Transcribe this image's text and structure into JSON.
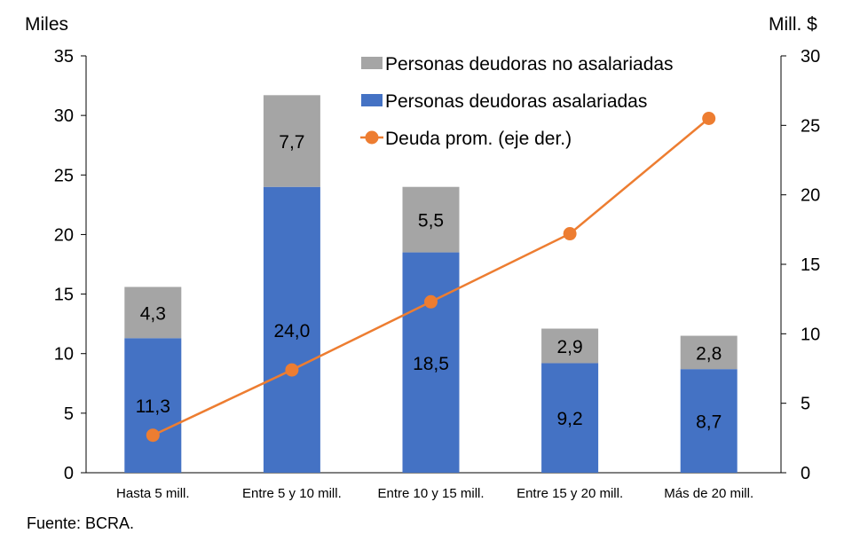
{
  "chart_data": {
    "type": "bar",
    "stacked": true,
    "categories": [
      "Hasta 5 mill.",
      "Entre 5 y 10 mill.",
      "Entre 10 y 15 mill.",
      "Entre 15 y 20 mill.",
      "Más de 20 mill."
    ],
    "series": [
      {
        "name": "Personas deudoras asalariadas",
        "type": "bar",
        "axis": "left",
        "color": "#4472C4",
        "values": [
          11.3,
          24.0,
          18.5,
          9.2,
          8.7
        ],
        "labels": [
          "11,3",
          "24,0",
          "18,5",
          "9,2",
          "8,7"
        ]
      },
      {
        "name": "Personas deudoras no asalariadas",
        "type": "bar",
        "axis": "left",
        "color": "#A5A5A5",
        "values": [
          4.3,
          7.7,
          5.5,
          2.9,
          2.8
        ],
        "labels": [
          "4,3",
          "7,7",
          "5,5",
          "2,9",
          "2,8"
        ]
      },
      {
        "name": "Deuda prom. (eje der.)",
        "type": "line",
        "axis": "right",
        "color": "#ED7D31",
        "marker": "circle",
        "values": [
          2.7,
          7.4,
          12.3,
          17.2,
          25.5
        ]
      }
    ],
    "legend_order": [
      "Personas deudoras no asalariadas",
      "Personas deudoras asalariadas",
      "Deuda prom. (eje der.)"
    ],
    "legend_placement": "top-right",
    "ylabel": "Miles",
    "ylim": [
      0,
      35
    ],
    "yticks": [
      "0",
      "5",
      "10",
      "15",
      "20",
      "25",
      "30",
      "35"
    ],
    "y2label": "Mill. $",
    "y2lim": [
      0,
      30
    ],
    "y2ticks": [
      "0",
      "5",
      "10",
      "15",
      "20",
      "25",
      "30"
    ],
    "grid": false
  },
  "source": "Fuente: BCRA."
}
